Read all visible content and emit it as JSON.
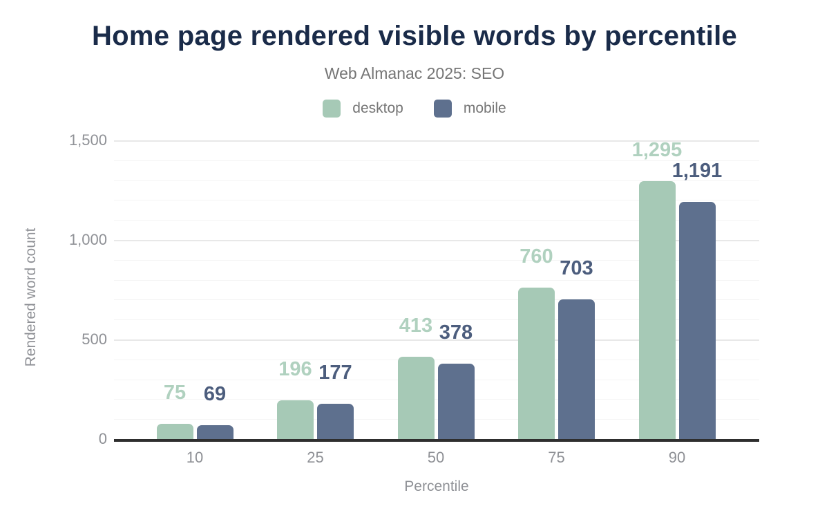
{
  "chart_data": {
    "type": "bar",
    "title": "Home page rendered visible words by percentile",
    "subtitle": "Web Almanac 2025: SEO",
    "xlabel": "Percentile",
    "ylabel": "Rendered word count",
    "categories": [
      "10",
      "25",
      "50",
      "75",
      "90"
    ],
    "series": [
      {
        "name": "desktop",
        "color": "#a6c9b6",
        "label_color": "#b0d1bf",
        "values": [
          75,
          196,
          413,
          760,
          1295
        ],
        "labels": [
          "75",
          "196",
          "413",
          "760",
          "1,295"
        ]
      },
      {
        "name": "mobile",
        "color": "#5e708e",
        "label_color": "#4c5d7d",
        "values": [
          69,
          177,
          378,
          703,
          1191
        ],
        "labels": [
          "69",
          "177",
          "378",
          "703",
          "1,191"
        ]
      }
    ],
    "y_axis": {
      "min": 0,
      "max": 1500,
      "major_grid_step": 500,
      "minor_grid_step": 100,
      "ticks": [
        {
          "value": 0,
          "label": "0"
        },
        {
          "value": 500,
          "label": "500"
        },
        {
          "value": 1000,
          "label": "1,000"
        },
        {
          "value": 1500,
          "label": "1,500"
        }
      ]
    },
    "legend_position": "top",
    "grid": "horizontal-only",
    "colors": {
      "title_text": "#1a2b49",
      "subtitle_text": "#757575",
      "axis_text": "#8f9196",
      "axis_line": "#2e2e2e",
      "grid_major": "#e8e8e8",
      "grid_minor": "#f4f4f4",
      "background": "#ffffff"
    }
  }
}
